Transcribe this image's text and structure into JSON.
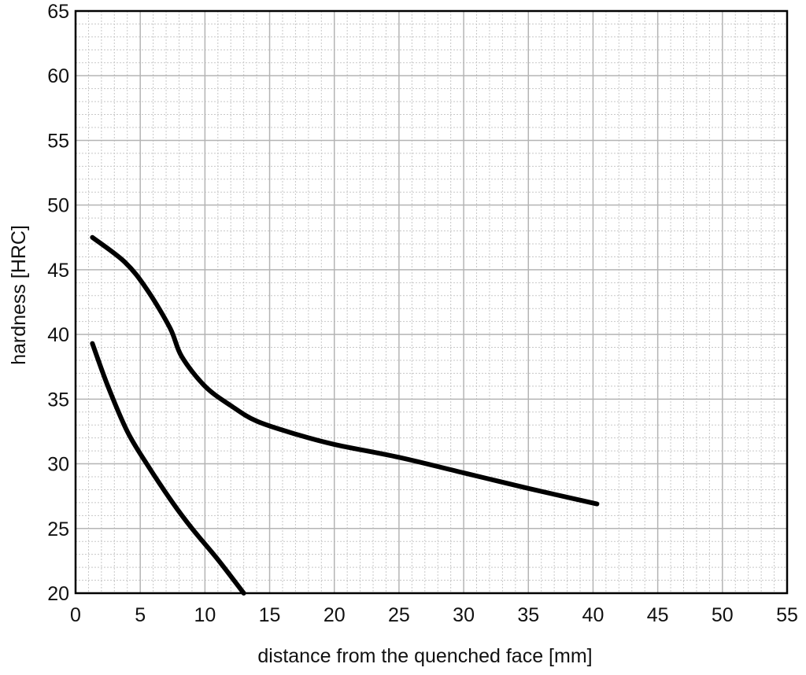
{
  "chart_data": {
    "type": "line",
    "title": "",
    "xlabel": "distance from the quenched face [mm]",
    "ylabel": "hardness [HRC]",
    "xlim": [
      0,
      55
    ],
    "ylim": [
      20,
      65
    ],
    "x_ticks": [
      0,
      5,
      10,
      15,
      20,
      25,
      30,
      35,
      40,
      45,
      50,
      55
    ],
    "y_ticks": [
      20,
      25,
      30,
      35,
      40,
      45,
      50,
      55,
      60,
      65
    ],
    "grid": {
      "major": true,
      "minor": true,
      "minor_step_x": 1,
      "minor_step_y": 1
    },
    "line_color": "#000000",
    "series": [
      {
        "points": [
          [
            1.3,
            47.5
          ],
          [
            3.8,
            45.6
          ],
          [
            5.5,
            43.5
          ],
          [
            7.3,
            40.5
          ],
          [
            8.2,
            38.3
          ],
          [
            10,
            36
          ],
          [
            12,
            34.5
          ],
          [
            14,
            33.3
          ],
          [
            17,
            32.3
          ],
          [
            20,
            31.5
          ],
          [
            25,
            30.5
          ],
          [
            30,
            29.3
          ],
          [
            35,
            28.1
          ],
          [
            40.3,
            26.9
          ]
        ]
      },
      {
        "points": [
          [
            1.3,
            39.3
          ],
          [
            2.5,
            36
          ],
          [
            4,
            32.5
          ],
          [
            5.5,
            30
          ],
          [
            7.5,
            27
          ],
          [
            9,
            25
          ],
          [
            11,
            22.6
          ],
          [
            13,
            20
          ]
        ]
      }
    ]
  }
}
